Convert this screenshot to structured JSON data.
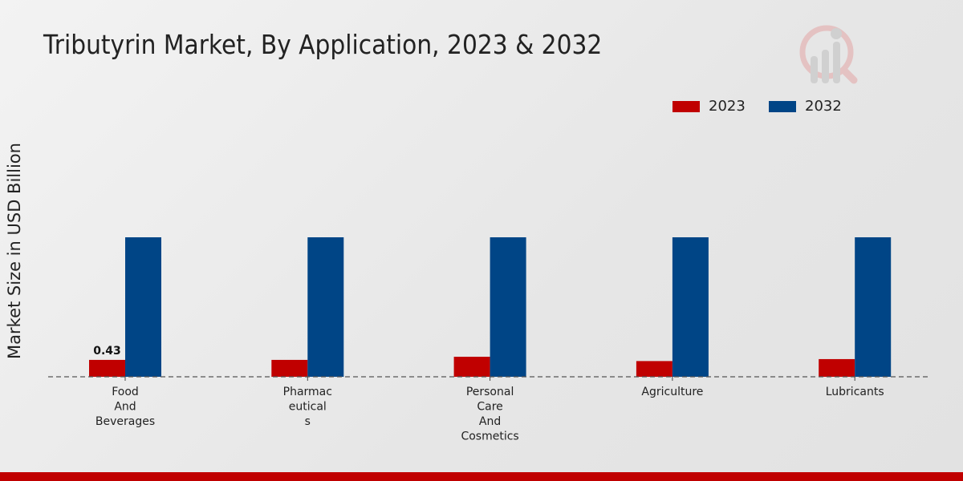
{
  "chart_data": {
    "type": "bar",
    "title": "Tributyrin Market, By Application, 2023 & 2032",
    "xlabel": "",
    "ylabel": "Market Size in USD Billion",
    "categories": [
      [
        "Food",
        "And",
        "Beverages"
      ],
      [
        "Pharmac",
        "eutical",
        "s"
      ],
      [
        "Personal",
        "Care",
        "And",
        "Cosmetics"
      ],
      [
        "Agriculture"
      ],
      [
        "Lubricants"
      ]
    ],
    "series": [
      {
        "name": "2023",
        "color": "#c00000",
        "values": [
          0.43,
          0.43,
          0.51,
          0.4,
          0.45
        ]
      },
      {
        "name": "2032",
        "color": "#004586",
        "values": [
          3.55,
          3.55,
          3.55,
          3.55,
          3.55
        ]
      }
    ],
    "data_labels": [
      {
        "series": "2023",
        "category_index": 0,
        "text": "0.43"
      }
    ],
    "ylim": [
      0,
      4.5
    ],
    "grid": false,
    "legend_position": "top-right"
  }
}
